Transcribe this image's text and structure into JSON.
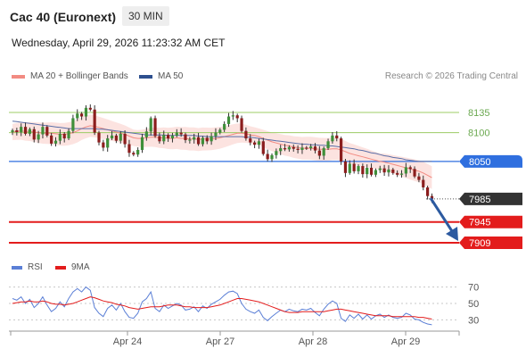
{
  "header": {
    "title": "Cac 40 (Euronext)",
    "timeframe": "30 MIN"
  },
  "datetime": "Wednesday, April 29, 2026 11:23:32 AM CET",
  "legend": {
    "bollinger": {
      "label": "MA 20 + Bollinger Bands",
      "color": "#f28b82"
    },
    "ma50": {
      "label": "MA 50",
      "color": "#2d4f8e"
    },
    "rsi": {
      "label": "RSI",
      "color": "#5b7fd6"
    },
    "rsi_ma": {
      "label": "9MA",
      "color": "#e31c1c"
    }
  },
  "credit": "Research © 2026 Trading Central",
  "levels": {
    "r2": {
      "value": 8135,
      "label": "8135",
      "color": "#9ccc65"
    },
    "r1": {
      "value": 8100,
      "label": "8100",
      "color": "#9ccc65"
    },
    "pivot": {
      "value": 8050,
      "label": "8050",
      "color": "#2f6fdf"
    },
    "last": {
      "value": 7985,
      "label": "7985",
      "color": "#333333"
    },
    "s1": {
      "value": 7945,
      "label": "7945",
      "color": "#e31c1c"
    },
    "s2": {
      "value": 7909,
      "label": "7909",
      "color": "#e31c1c"
    }
  },
  "rsi_ticks": [
    "70",
    "50",
    "30"
  ],
  "x_labels": [
    "Apr 24",
    "Apr 27",
    "Apr 28",
    "Apr 29"
  ],
  "chart_data": {
    "type": "candlestick",
    "y_unit": "index points",
    "ylim": [
      7890,
      8165
    ],
    "close": [
      8104,
      8101,
      8110,
      8098,
      8106,
      8088,
      8097,
      8110,
      8095,
      8081,
      8086,
      8098,
      8090,
      8103,
      8125,
      8133,
      8128,
      8143,
      8140,
      8100,
      8083,
      8074,
      8090,
      8095,
      8086,
      8098,
      8080,
      8065,
      8062,
      8070,
      8092,
      8102,
      8125,
      8094,
      8085,
      8096,
      8090,
      8095,
      8100,
      8097,
      8087,
      8088,
      8092,
      8080,
      8091,
      8085,
      8094,
      8100,
      8105,
      8115,
      8128,
      8130,
      8125,
      8103,
      8090,
      8083,
      8079,
      8085,
      8063,
      8054,
      8061,
      8068,
      8073,
      8071,
      8075,
      8072,
      8070,
      8074,
      8073,
      8076,
      8069,
      8060,
      8073,
      8085,
      8095,
      8090,
      8050,
      8030,
      8046,
      8033,
      8042,
      8028,
      8039,
      8027,
      8035,
      8038,
      8031,
      8036,
      8030,
      8027,
      8029,
      8040,
      8037,
      8024,
      8018,
      8005,
      7990,
      7985
    ],
    "ma20": [
      8101,
      8102,
      8103,
      8102,
      8102,
      8101,
      8100,
      8099,
      8099,
      8099,
      8098,
      8097,
      8097,
      8098,
      8100,
      8103,
      8107,
      8110,
      8112,
      8111,
      8109,
      8107,
      8105,
      8103,
      8101,
      8099,
      8097,
      8094,
      8091,
      8090,
      8090,
      8091,
      8092,
      8092,
      8091,
      8091,
      8090,
      8090,
      8091,
      8090,
      8090,
      8089,
      8089,
      8088,
      8089,
      8089,
      8089,
      8090,
      8091,
      8093,
      8095,
      8097,
      8099,
      8099,
      8098,
      8096,
      8095,
      8093,
      8090,
      8087,
      8084,
      8082,
      8080,
      8078,
      8077,
      8075,
      8074,
      8073,
      8073,
      8073,
      8072,
      8071,
      8071,
      8071,
      8072,
      8072,
      8070,
      8067,
      8064,
      8062,
      8060,
      8058,
      8056,
      8054,
      8052,
      8050,
      8049,
      8047,
      8045,
      8043,
      8041,
      8039,
      8037,
      8035,
      8033,
      8030,
      8026,
      8022
    ],
    "ma50": [
      8120,
      8119,
      8118,
      8117,
      8116,
      8115,
      8114,
      8113,
      8112,
      8111,
      8110,
      8109,
      8108,
      8107,
      8107,
      8107,
      8107,
      8107,
      8107,
      8107,
      8106,
      8106,
      8105,
      8104,
      8103,
      8102,
      8101,
      8100,
      8099,
      8098,
      8097,
      8096,
      8096,
      8096,
      8096,
      8096,
      8095,
      8095,
      8095,
      8095,
      8095,
      8095,
      8095,
      8094,
      8094,
      8093,
      8093,
      8093,
      8093,
      8093,
      8093,
      8093,
      8093,
      8093,
      8092,
      8092,
      8091,
      8090,
      8089,
      8088,
      8087,
      8086,
      8085,
      8084,
      8083,
      8082,
      8081,
      8080,
      8080,
      8079,
      8079,
      8078,
      8078,
      8077,
      8077,
      8076,
      8075,
      8074,
      8073,
      8072,
      8070,
      8069,
      8067,
      8065,
      8064,
      8062,
      8060,
      8059,
      8057,
      8056,
      8055,
      8053,
      8052,
      8051,
      8050,
      8050,
      8050,
      8050
    ],
    "rsi": [
      56,
      54,
      58,
      50,
      55,
      45,
      50,
      58,
      48,
      40,
      44,
      52,
      46,
      56,
      64,
      68,
      64,
      70,
      66,
      45,
      38,
      34,
      44,
      48,
      42,
      50,
      40,
      33,
      32,
      38,
      52,
      56,
      64,
      44,
      40,
      48,
      44,
      47,
      50,
      48,
      42,
      43,
      46,
      40,
      47,
      44,
      49,
      52,
      55,
      60,
      64,
      65,
      62,
      50,
      43,
      40,
      38,
      42,
      33,
      29,
      34,
      38,
      42,
      40,
      43,
      41,
      40,
      43,
      42,
      44,
      39,
      35,
      43,
      49,
      53,
      50,
      32,
      28,
      36,
      32,
      37,
      31,
      36,
      31,
      35,
      37,
      33,
      36,
      33,
      32,
      33,
      38,
      36,
      31,
      30,
      27,
      25,
      24
    ],
    "rsi_ma": [
      50,
      51,
      52,
      52,
      53,
      52,
      52,
      53,
      52,
      50,
      49,
      49,
      48,
      49,
      50,
      52,
      54,
      56,
      58,
      57,
      55,
      53,
      52,
      51,
      49,
      48,
      47,
      45,
      44,
      43,
      44,
      45,
      46,
      46,
      46,
      47,
      48,
      48,
      48,
      47,
      46,
      46,
      45,
      45,
      45,
      45,
      46,
      47,
      48,
      50,
      52,
      54,
      56,
      56,
      55,
      54,
      53,
      52,
      50,
      48,
      46,
      44,
      42,
      40,
      39,
      39,
      39,
      40,
      40,
      40,
      40,
      40,
      40,
      41,
      42,
      43,
      43,
      42,
      41,
      40,
      39,
      38,
      37,
      36,
      35,
      35,
      35,
      35,
      34,
      34,
      34,
      34,
      34,
      34,
      33,
      33,
      32,
      31
    ]
  }
}
